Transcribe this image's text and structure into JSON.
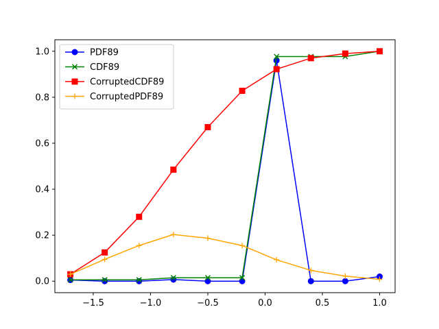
{
  "chart_data": {
    "type": "line",
    "title": "",
    "xlabel": "",
    "ylabel": "",
    "xlim": [
      -1.835,
      1.135
    ],
    "ylim": [
      -0.05,
      1.05
    ],
    "xticks": [
      -1.5,
      -1.0,
      -0.5,
      0.0,
      0.5,
      1.0
    ],
    "xtick_labels": [
      "−1.5",
      "−1.0",
      "−0.5",
      "0.0",
      "0.5",
      "1.0"
    ],
    "yticks": [
      0.0,
      0.2,
      0.4,
      0.6,
      0.8,
      1.0
    ],
    "ytick_labels": [
      "0.0",
      "0.2",
      "0.4",
      "0.6",
      "0.8",
      "1.0"
    ],
    "grid": false,
    "legend_position": "upper-left",
    "x": [
      -1.7,
      -1.4,
      -1.1,
      -0.8,
      -0.5,
      -0.2,
      0.1,
      0.4,
      0.7,
      1.0
    ],
    "series": [
      {
        "name": "PDF89",
        "color": "#0000ff",
        "marker": "circle",
        "values": [
          0.005,
          0.0,
          0.0,
          0.007,
          0.0,
          0.0,
          0.96,
          0.0,
          0.0,
          0.02
        ]
      },
      {
        "name": "CDF89",
        "color": "#008000",
        "marker": "x",
        "values": [
          0.006,
          0.006,
          0.006,
          0.015,
          0.015,
          0.015,
          0.977,
          0.977,
          0.977,
          1.0
        ]
      },
      {
        "name": "CorruptedCDF89",
        "color": "#ff0000",
        "marker": "square",
        "values": [
          0.03,
          0.125,
          0.28,
          0.485,
          0.67,
          0.828,
          0.922,
          0.97,
          0.99,
          1.0
        ]
      },
      {
        "name": "CorruptedPDF89",
        "color": "#ffa500",
        "marker": "plus",
        "values": [
          0.03,
          0.095,
          0.155,
          0.203,
          0.187,
          0.155,
          0.093,
          0.047,
          0.022,
          0.008
        ]
      }
    ]
  }
}
